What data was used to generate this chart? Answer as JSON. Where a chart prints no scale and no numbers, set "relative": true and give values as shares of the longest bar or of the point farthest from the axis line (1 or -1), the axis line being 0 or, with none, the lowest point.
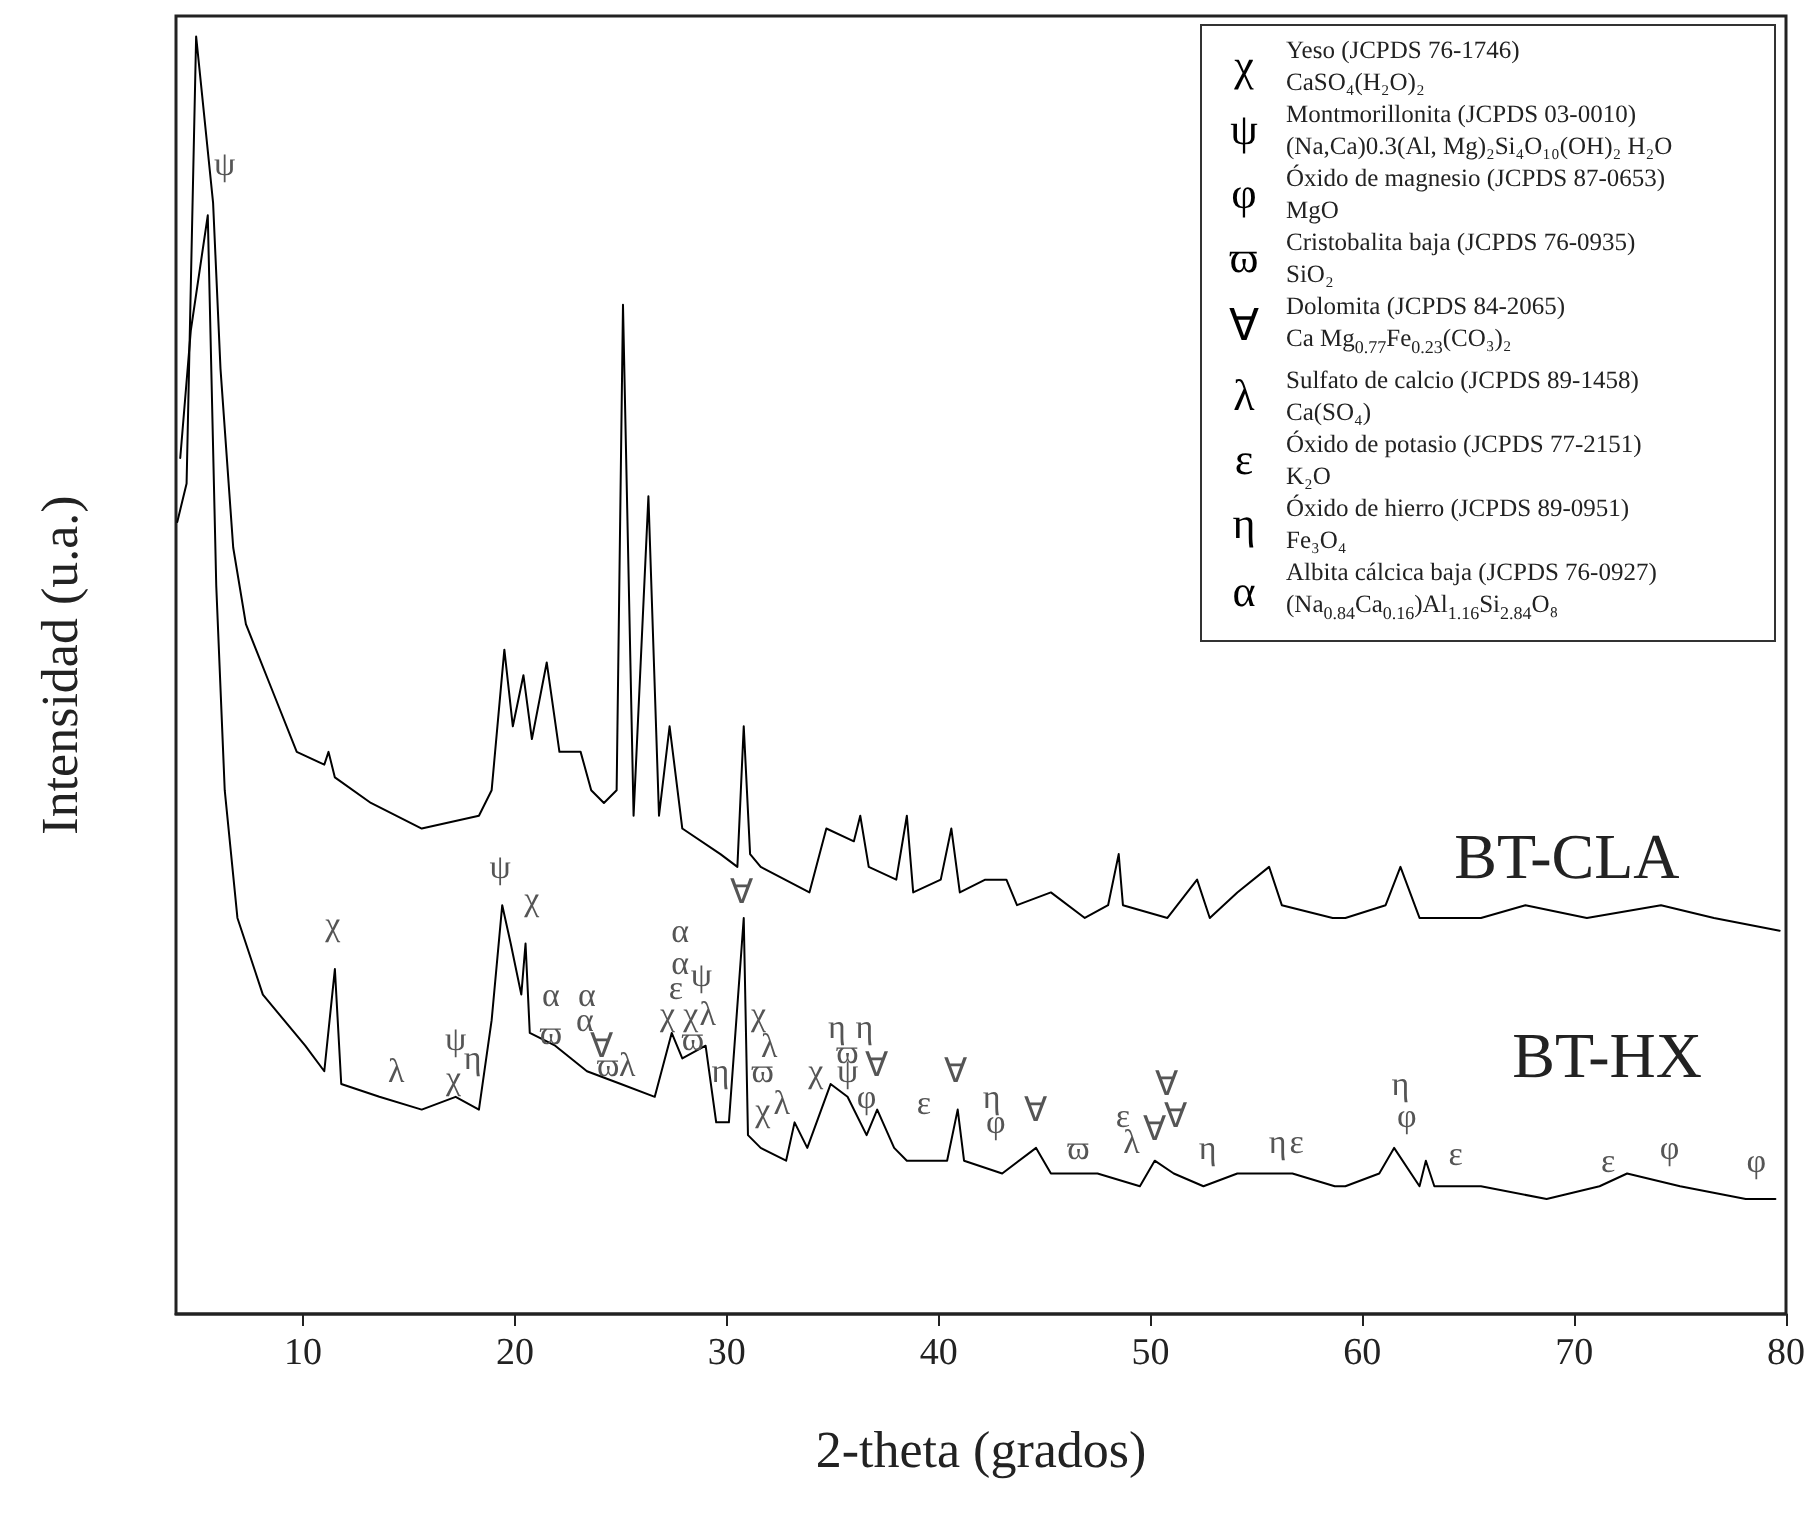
{
  "chart_data": {
    "type": "line",
    "relative": true,
    "xlabel": "2-theta (grados)",
    "ylabel": "Intensidad (u.a.)",
    "xlim": [
      4,
      80
    ],
    "xticks": [
      10,
      20,
      30,
      40,
      50,
      60,
      70,
      80
    ],
    "grid": false,
    "marker": "none",
    "line_style": "solid",
    "series": [
      {
        "name": "BT-CLA",
        "color": "#000000",
        "x": [
          4.06,
          4.5,
          4.95,
          5.75,
          6.1,
          6.7,
          7.3,
          8.5,
          9.7,
          11.0,
          11.2,
          11.5,
          13.2,
          15.6,
          18.3,
          18.9,
          19.5,
          19.9,
          20.4,
          20.8,
          21.5,
          22.1,
          23.1,
          23.6,
          24.2,
          24.8,
          25.1,
          25.6,
          26.3,
          26.8,
          27.3,
          27.9,
          29.7,
          30.5,
          30.8,
          31.1,
          31.6,
          33.9,
          34.7,
          36.0,
          36.3,
          36.7,
          38.0,
          38.5,
          38.8,
          40.1,
          40.6,
          41.0,
          42.2,
          43.2,
          43.7,
          45.3,
          46.9,
          48.0,
          48.5,
          48.7,
          50.8,
          52.2,
          52.8,
          54.1,
          55.6,
          56.2,
          58.6,
          59.2,
          61.1,
          61.8,
          62.7,
          65.6,
          67.7,
          70.6,
          74.1,
          76.6,
          79.7
        ],
        "values": [
          0.62,
          0.65,
          1.0,
          0.87,
          0.74,
          0.6,
          0.54,
          0.49,
          0.44,
          0.43,
          0.44,
          0.42,
          0.4,
          0.38,
          0.39,
          0.41,
          0.52,
          0.46,
          0.5,
          0.45,
          0.51,
          0.44,
          0.44,
          0.41,
          0.4,
          0.41,
          0.79,
          0.39,
          0.64,
          0.39,
          0.46,
          0.38,
          0.36,
          0.35,
          0.46,
          0.36,
          0.35,
          0.33,
          0.38,
          0.37,
          0.39,
          0.35,
          0.34,
          0.39,
          0.33,
          0.34,
          0.38,
          0.33,
          0.34,
          0.34,
          0.32,
          0.33,
          0.31,
          0.32,
          0.36,
          0.32,
          0.31,
          0.34,
          0.31,
          0.33,
          0.35,
          0.32,
          0.31,
          0.31,
          0.32,
          0.35,
          0.31,
          0.31,
          0.32,
          0.31,
          0.32,
          0.31,
          0.3
        ]
      },
      {
        "name": "BT-HX",
        "color": "#000000",
        "x": [
          4.2,
          4.7,
          5.5,
          5.9,
          6.3,
          6.9,
          8.1,
          10.1,
          11.0,
          11.5,
          11.8,
          13.6,
          15.6,
          17.2,
          18.3,
          18.9,
          19.4,
          19.8,
          20.3,
          20.5,
          20.7,
          21.9,
          23.4,
          25.0,
          26.6,
          27.4,
          27.9,
          29.0,
          29.5,
          30.1,
          30.8,
          31.0,
          31.6,
          32.8,
          33.2,
          33.8,
          34.9,
          35.7,
          36.6,
          37.1,
          37.9,
          38.5,
          40.4,
          40.9,
          41.2,
          43.0,
          44.6,
          45.3,
          47.5,
          49.5,
          50.2,
          51.1,
          52.5,
          54.1,
          56.7,
          58.7,
          59.2,
          60.8,
          61.5,
          62.7,
          63.0,
          63.4,
          65.6,
          68.7,
          71.2,
          72.5,
          75.0,
          78.1,
          79.5
        ],
        "values": [
          0.67,
          0.77,
          0.86,
          0.57,
          0.41,
          0.31,
          0.25,
          0.21,
          0.19,
          0.27,
          0.18,
          0.17,
          0.16,
          0.17,
          0.16,
          0.23,
          0.32,
          0.29,
          0.25,
          0.29,
          0.22,
          0.21,
          0.19,
          0.18,
          0.17,
          0.22,
          0.2,
          0.21,
          0.15,
          0.15,
          0.31,
          0.14,
          0.13,
          0.12,
          0.15,
          0.13,
          0.18,
          0.17,
          0.14,
          0.16,
          0.13,
          0.12,
          0.12,
          0.16,
          0.12,
          0.11,
          0.13,
          0.11,
          0.11,
          0.1,
          0.12,
          0.11,
          0.1,
          0.11,
          0.11,
          0.1,
          0.1,
          0.11,
          0.13,
          0.1,
          0.12,
          0.1,
          0.1,
          0.09,
          0.1,
          0.11,
          0.1,
          0.09,
          0.09
        ]
      }
    ],
    "annotations": [
      "χ",
      "Yeso (JCPDS 76-1746)",
      "CaSO₄(H₂O)₂",
      "ψ",
      "Montmorillonita (JCPDS 03-0010)",
      "(Na,Ca)0.3(Al, Mg)₂Si₄O₁₀(OH)₂ H₂O",
      "φ",
      "Óxido de magnesio (JCPDS 87-0653)",
      "MgO",
      "ϖ",
      "Cristobalita baja (JCPDS 76-0935)",
      "SiO₂",
      "∀",
      "Dolomita (JCPDS 84-2065)",
      "Ca Mg$_{0.77}$Fe$_{0.23}$(CO₃)₂",
      "λ",
      "Sulfato de calcio (JCPDS 89-1458)",
      "Ca(SO₄)",
      "ε",
      "Óxido de potasio (JCPDS 77-2151)",
      "K₂O",
      "η",
      "Óxido de hierro (JCPDS 89-0951)",
      "Fe₃O₄",
      "α",
      "Albita cálcica baja (JCPDS 76-0927)",
      "(Na$_{0.84}$Ca$_{0.16}$)Al$_{1.16}$Si$_{2.84}$O₈",
      "ψ",
      "χ",
      "λ",
      "ψ",
      "χ",
      "η",
      "ψ",
      "χ",
      "α",
      "ϖ",
      "α",
      "α",
      "∀",
      "ϖ",
      "λ",
      "α",
      "α",
      "ε",
      "ψ",
      "χ",
      "χ",
      "λ",
      "ϖ",
      "η",
      "∀",
      "χ",
      "λ",
      "ϖ",
      "χ",
      "λ",
      "η",
      "η",
      "ϖ",
      "χ",
      "ψ",
      "∀",
      "φ",
      "ε",
      "∀",
      "η",
      "φ",
      "∀",
      "ϖ",
      "ε",
      "λ",
      "∀",
      "∀",
      "∀",
      "η",
      "η",
      "ε",
      "η",
      "φ",
      "ε",
      "ε",
      "φ",
      "φ"
    ]
  }
}
